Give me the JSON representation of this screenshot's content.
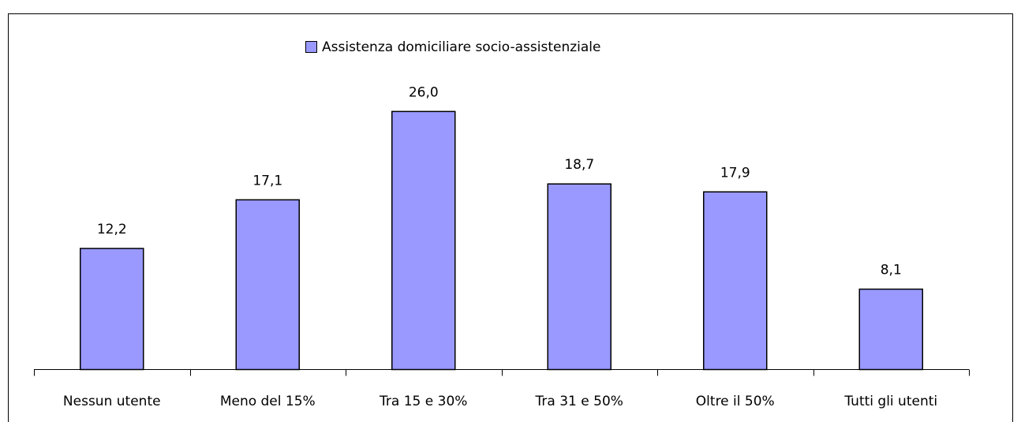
{
  "chart_data": {
    "type": "bar",
    "categories": [
      "Nessun utente",
      "Meno del 15%",
      "Tra 15 e 30%",
      "Tra 31 e 50%",
      "Oltre il 50%",
      "Tutti gli utenti"
    ],
    "series": [
      {
        "name": "Assistenza domiciliare socio-assistenziale",
        "color": "#9999ff",
        "values": [
          12.2,
          17.1,
          26.0,
          18.7,
          17.9,
          8.1
        ],
        "value_labels": [
          "12,2",
          "17,1",
          "26,0",
          "18,7",
          "17,9",
          "8,1"
        ]
      }
    ],
    "ylim": [
      0,
      30
    ],
    "legend": "top"
  }
}
